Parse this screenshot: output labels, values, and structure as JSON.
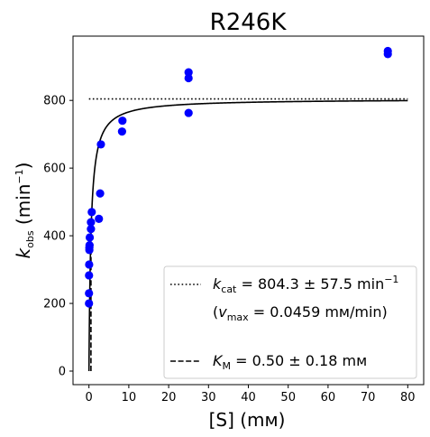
{
  "chart_data": {
    "type": "scatter",
    "title": "R246K",
    "xlabel": "[S] (mм)",
    "ylabel": {
      "base": "k",
      "sub": "obs",
      "pre": " (min",
      "sup": "−1",
      "post": ")"
    },
    "xlim": [
      -4,
      84
    ],
    "ylim": [
      -40,
      990
    ],
    "x_ticks": [
      0,
      10,
      20,
      30,
      40,
      50,
      60,
      70,
      80
    ],
    "y_ticks": [
      0,
      200,
      400,
      600,
      800
    ],
    "grid": false,
    "legend_placement": "lower-right",
    "colors": {
      "points": "#0000ff",
      "fit": "#000000",
      "kcat": "#000000",
      "km": "#000000"
    },
    "series": [
      {
        "type": "scatter",
        "marker": "circle",
        "color": "#0000ff",
        "points": [
          [
            0.01,
            200
          ],
          [
            0.01,
            230
          ],
          [
            0.02,
            283
          ],
          [
            0.05,
            315
          ],
          [
            0.1,
            358
          ],
          [
            0.1,
            365
          ],
          [
            0.15,
            372
          ],
          [
            0.2,
            395
          ],
          [
            0.5,
            420
          ],
          [
            0.5,
            440
          ],
          [
            0.7,
            470
          ],
          [
            2.5,
            450
          ],
          [
            2.8,
            525
          ],
          [
            3,
            670
          ],
          [
            8.3,
            708
          ],
          [
            8.4,
            740
          ],
          [
            25,
            763
          ],
          [
            25,
            866
          ],
          [
            25,
            883
          ],
          [
            75,
            937
          ],
          [
            75,
            946
          ]
        ]
      },
      {
        "type": "line",
        "style": "solid",
        "model": "michaelis-menten",
        "vmax": 804.3,
        "km": 0.5,
        "x_range": [
          0,
          80
        ]
      },
      {
        "type": "line",
        "style": "dotted",
        "y": 804.3,
        "x_range": [
          0,
          80
        ]
      },
      {
        "type": "line",
        "style": "dashed",
        "x": 0.5,
        "y_range": [
          0,
          402
        ]
      }
    ],
    "legend": {
      "kcat": {
        "symbol": "k",
        "sub": "cat",
        "text": " = 804.3 ± 57.5 min",
        "sup": "−1"
      },
      "vmax": {
        "open": "(",
        "symbol": "v",
        "sub": "max",
        "text": " = 0.0459 mм/min)"
      },
      "km": {
        "symbol": "K",
        "sub": "M",
        "text": " = 0.50 ± 0.18 mм"
      }
    }
  }
}
